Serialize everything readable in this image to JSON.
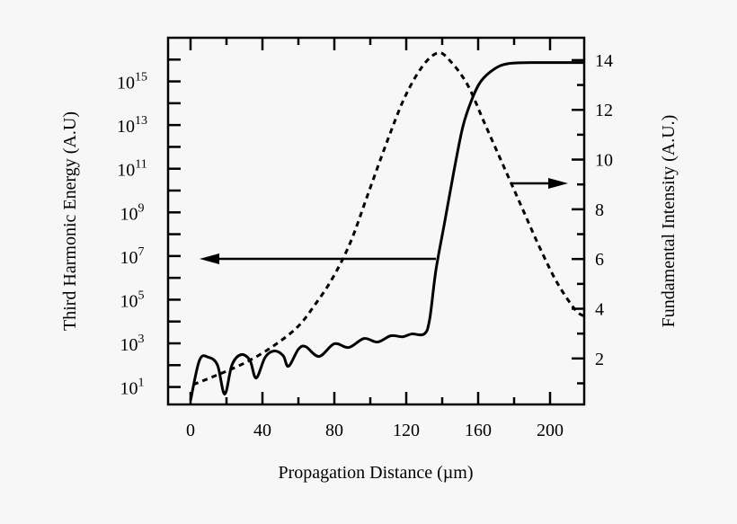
{
  "chart_data": {
    "type": "line",
    "xlabel": "Propagation Distance (µm)",
    "ylabel_left": "Third Harmonic Energy (A.U)",
    "ylabel_right": "Fundamental Intensity (A.U.)",
    "xlim": [
      -12.5,
      219
    ],
    "ylim_left_log10": [
      0.2,
      17
    ],
    "yscale_left": "log",
    "ylim_right": [
      0.15,
      14.9
    ],
    "x_ticks": [
      0,
      40,
      80,
      120,
      160,
      200
    ],
    "y_left_ticks_exponents": [
      1,
      3,
      5,
      7,
      9,
      11,
      13,
      15
    ],
    "y_right_ticks": [
      2,
      4,
      6,
      8,
      10,
      12,
      14
    ],
    "grid": false,
    "series": [
      {
        "axis": "left",
        "style": "solid",
        "color": "#000000",
        "x": [
          0,
          5,
          10,
          15,
          19,
          23,
          28,
          33,
          36.5,
          41.5,
          46.5,
          51.5,
          54.5,
          60,
          64,
          71.5,
          80,
          88,
          96.5,
          104,
          111.5,
          118,
          123,
          130,
          133,
          136.5,
          141.5,
          146.5,
          151.5,
          156.5,
          161.5,
          169,
          176.5,
          189,
          219
        ],
        "log10_y": [
          0.38,
          2.23,
          2.36,
          2.0,
          0.67,
          2.0,
          2.48,
          2.23,
          1.41,
          2.36,
          2.65,
          2.44,
          1.95,
          2.73,
          2.85,
          2.4,
          2.98,
          2.81,
          3.22,
          3.06,
          3.35,
          3.3,
          3.43,
          3.43,
          4.09,
          6.35,
          8.61,
          10.88,
          12.93,
          14.17,
          15.0,
          15.57,
          15.81,
          15.86,
          15.86
        ]
      },
      {
        "axis": "right",
        "style": "dashed",
        "color": "#000000",
        "x": [
          1.5,
          14,
          29,
          44,
          59,
          69,
          79,
          89,
          99,
          109,
          119,
          129,
          137.5,
          144,
          154,
          164,
          174,
          184,
          194,
          204,
          214,
          219
        ],
        "y": [
          0.95,
          1.31,
          1.78,
          2.4,
          3.23,
          4.14,
          5.23,
          6.68,
          8.67,
          10.66,
          12.48,
          13.75,
          14.29,
          14.0,
          13.02,
          11.39,
          9.76,
          8.13,
          6.5,
          5.04,
          3.96,
          3.7
        ]
      }
    ],
    "annotations": [
      {
        "type": "arrow",
        "direction": "left",
        "points_to": "left axis",
        "from_series": "solid"
      },
      {
        "type": "arrow",
        "direction": "right",
        "points_to": "right axis",
        "from_series": "dashed"
      }
    ]
  }
}
